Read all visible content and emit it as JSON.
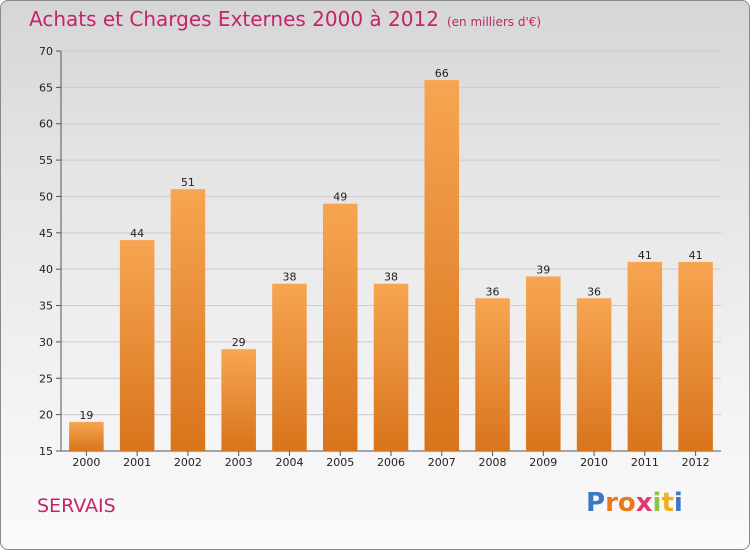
{
  "title": "Achats et Charges Externes 2000 à 2012",
  "subtitle": "(en milliers d'€)",
  "commune": "SERVAIS",
  "brand": {
    "letters": [
      "P",
      "r",
      "o",
      "x",
      "i",
      "t",
      "i"
    ],
    "colors": [
      "#3b78c2",
      "#e8791c",
      "#e8791c",
      "#e23a6f",
      "#8cc63f",
      "#f2b01e",
      "#3b78c2"
    ]
  },
  "colors": {
    "title": "#c4246a",
    "bar_light": "#f7a552",
    "bar_dark": "#d8741c",
    "grid": "#cccccc",
    "axis_text": "#222222"
  },
  "chart_data": {
    "type": "bar",
    "categories": [
      "2000",
      "2001",
      "2002",
      "2003",
      "2004",
      "2005",
      "2006",
      "2007",
      "2008",
      "2009",
      "2010",
      "2011",
      "2012"
    ],
    "values": [
      19,
      44,
      51,
      29,
      38,
      49,
      38,
      66,
      36,
      39,
      36,
      41,
      41
    ],
    "data_labels": [
      "19",
      "44",
      "51",
      "29",
      "38",
      "49",
      "38",
      "66",
      "36",
      "39",
      "36",
      "41",
      "41"
    ],
    "yticks": [
      15,
      20,
      25,
      30,
      35,
      40,
      45,
      50,
      55,
      60,
      65,
      70
    ],
    "ylim": [
      15,
      70
    ],
    "grid": true,
    "xlabel": "",
    "ylabel": ""
  }
}
